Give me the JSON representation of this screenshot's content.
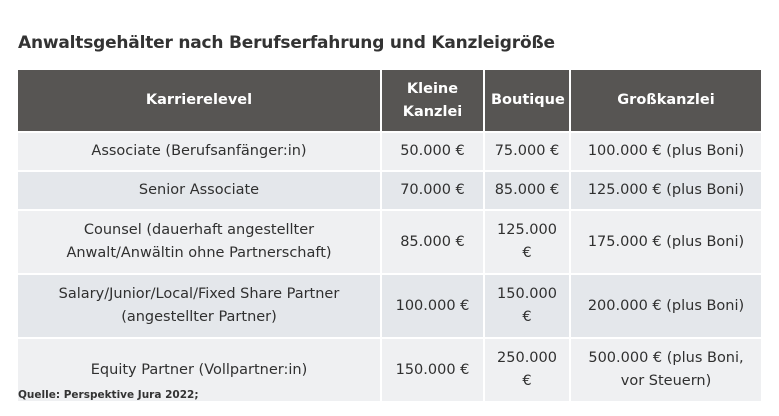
{
  "title": "Anwaltsgehälter nach Berufserfahrung und Kanzleigröße",
  "table": {
    "headers": [
      "Karrierelevel",
      "Kleine Kanzlei",
      "Boutique",
      "Großkanzlei"
    ],
    "rows": [
      [
        "Associate (Berufsanfänger:in)",
        "50.000 €",
        "75.000 €",
        "100.000 € (plus Boni)"
      ],
      [
        "Senior Associate",
        "70.000 €",
        "85.000 €",
        "125.000 € (plus Boni)"
      ],
      [
        "Counsel (dauerhaft angestellter Anwalt/Anwältin ohne Partnerschaft)",
        "85.000 €",
        "125.000 €",
        "175.000 € (plus Boni)"
      ],
      [
        "Salary/Junior/Local/Fixed Share Partner (angestellter Partner)",
        "100.000 €",
        "150.000 €",
        "200.000 € (plus Boni)"
      ],
      [
        "Equity Partner (Vollpartner:in)",
        "150.000 €",
        "250.000 €",
        "500.000 € (plus Boni, vor Steuern)"
      ]
    ]
  },
  "source": "Quelle: Perspektive Jura 2022;"
}
